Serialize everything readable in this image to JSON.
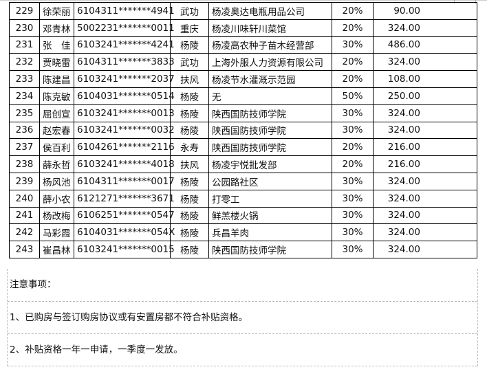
{
  "rows": [
    {
      "no": "229",
      "name": "徐荣丽",
      "id": "6104311*******4941",
      "region": "武功",
      "employer": "杨凌奥达电瓶用品公司",
      "rate": "20%",
      "amount": "90.00"
    },
    {
      "no": "230",
      "name": "邓青林",
      "id": "5002231*******0011",
      "region": "重庆",
      "employer": "杨凌川味轩川菜馆",
      "rate": "20%",
      "amount": "324.00"
    },
    {
      "no": "231",
      "name": "张　佳",
      "id": "6103241*******4241",
      "region": "杨陵",
      "employer": "杨凌高农种子苗木经营部",
      "rate": "30%",
      "amount": "486.00"
    },
    {
      "no": "232",
      "name": "贾晓雷",
      "id": "6104311*******3833",
      "region": "武功",
      "employer": "上海外服人力资源有限公司",
      "rate": "20%",
      "amount": "324.00"
    },
    {
      "no": "233",
      "name": "陈建昌",
      "id": "6103241*******2037",
      "region": "扶风",
      "employer": "杨凌节水灌溉示范园",
      "rate": "20%",
      "amount": "108.00"
    },
    {
      "no": "234",
      "name": "陈克敏",
      "id": "6104031*******0514",
      "region": "杨陵",
      "employer": "无",
      "rate": "50%",
      "amount": "250.00"
    },
    {
      "no": "235",
      "name": "屈创宣",
      "id": "6103241*******0013",
      "region": "杨陵",
      "employer": "陕西国防技师学院",
      "rate": "30%",
      "amount": "324.00"
    },
    {
      "no": "236",
      "name": "赵宏春",
      "id": "6103241*******0032",
      "region": "杨陵",
      "employer": "陕西国防技师学院",
      "rate": "30%",
      "amount": "324.00"
    },
    {
      "no": "237",
      "name": "侯百利",
      "id": "6104261*******2116",
      "region": "永寿",
      "employer": "陕西国防技师学院",
      "rate": "20%",
      "amount": "216.00"
    },
    {
      "no": "238",
      "name": "薛永哲",
      "id": "6103241*******4018",
      "region": "扶风",
      "employer": "杨凌宇悦批发部",
      "rate": "20%",
      "amount": "216.00"
    },
    {
      "no": "239",
      "name": "杨风池",
      "id": "6104311*******0017",
      "region": "杨陵",
      "employer": "公园路社区",
      "rate": "30%",
      "amount": "324.00"
    },
    {
      "no": "240",
      "name": "薛小农",
      "id": "6121271*******3671",
      "region": "杨陵",
      "employer": "打零工",
      "rate": "30%",
      "amount": "324.00"
    },
    {
      "no": "241",
      "name": "杨改梅",
      "id": "6106251*******0547",
      "region": "杨陵",
      "employer": "鲜羔楼火锅",
      "rate": "30%",
      "amount": "324.00"
    },
    {
      "no": "242",
      "name": "马彩霞",
      "id": "6104031*******054X",
      "region": "杨陵",
      "employer": "兵昌羊肉",
      "rate": "30%",
      "amount": "324.00"
    },
    {
      "no": "243",
      "name": "崔昌林",
      "id": "6103241*******0015",
      "region": "杨陵",
      "employer": "陕西国防技师学院",
      "rate": "30%",
      "amount": "324.00"
    }
  ],
  "notes": {
    "heading": "注意事项：",
    "items": [
      "1、已购房与签订购房协议或有安置房都不符合补贴资格。",
      "2、补贴资格一年一申请，一季度一发放。"
    ]
  }
}
